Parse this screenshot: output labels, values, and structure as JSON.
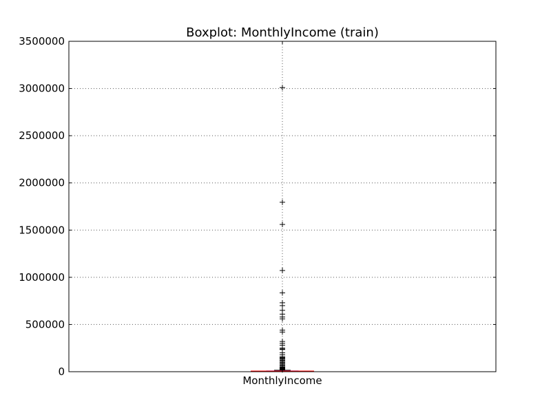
{
  "chart_data": {
    "type": "box",
    "title": "Boxplot: MonthlyIncome (train)",
    "xlabel": "",
    "ylabel": "",
    "categories": [
      "MonthlyIncome"
    ],
    "ylim": [
      0,
      3500000
    ],
    "yticks": [
      0,
      500000,
      1000000,
      1500000,
      2000000,
      2500000,
      3000000,
      3500000
    ],
    "ytick_labels": [
      "0",
      "500000",
      "1000000",
      "1500000",
      "2000000",
      "2500000",
      "3000000",
      "3500000"
    ],
    "grid": true,
    "box": {
      "q1": 3400,
      "median": 5400,
      "q3": 8250,
      "whisker_low": 0,
      "whisker_high": 15500
    },
    "outliers": [
      3010000,
      1795000,
      1560000,
      1072000,
      835000,
      730000,
      700000,
      650000,
      610000,
      580000,
      560000,
      440000,
      420000,
      320000,
      300000,
      280000,
      250000,
      240000,
      235000,
      200000,
      180000,
      160000,
      150000,
      145000,
      140000,
      130000,
      120000,
      110000,
      100000,
      90000,
      80000,
      70000,
      60000,
      50000,
      45000,
      40000,
      35000,
      30000,
      25000,
      20000
    ],
    "colors": {
      "box": "#0000ff",
      "median": "#ff0000",
      "whisker": "#0000ff",
      "outlier": "#000000",
      "grid": "#555555",
      "axes": "#000000"
    }
  }
}
